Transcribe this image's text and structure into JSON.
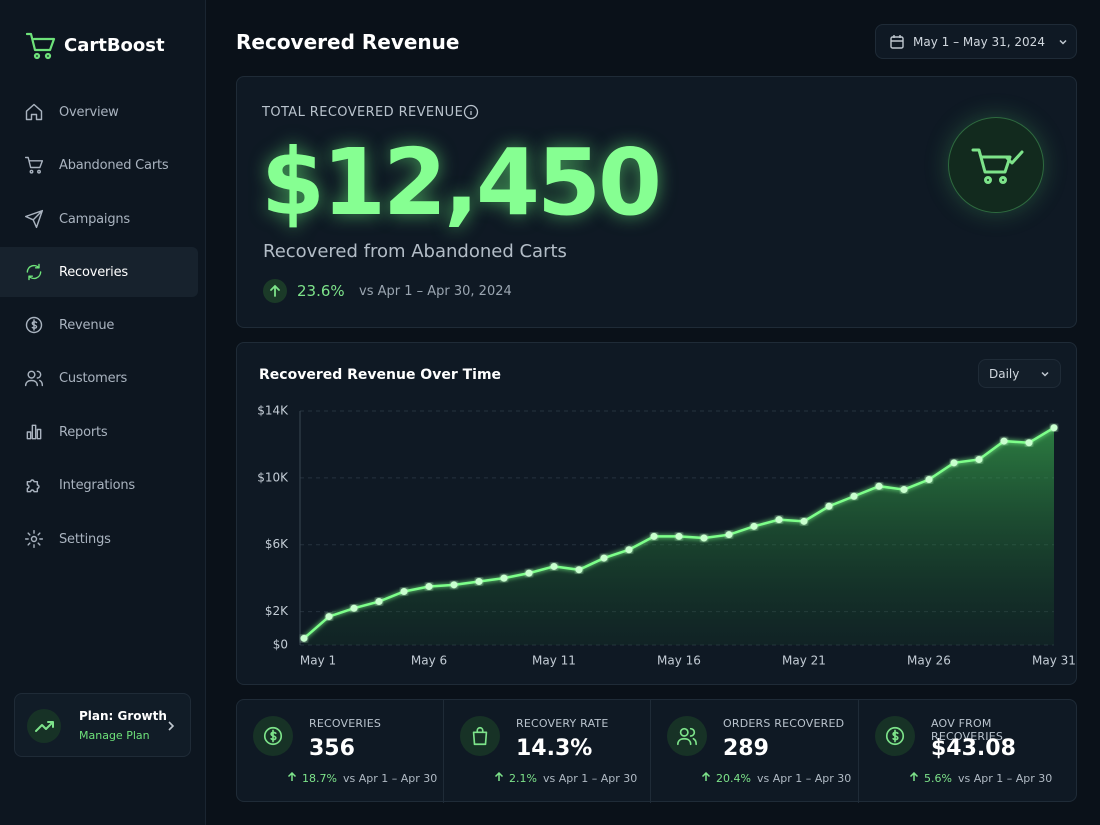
{
  "sidebar": {
    "brand": "CartBoost",
    "nav": [
      "Overview",
      "Abandoned Carts",
      "Campaigns",
      "Recoveries",
      "Revenue",
      "Customers",
      "Reports",
      "Integrations",
      "Settings"
    ],
    "plan": {
      "title": "Plan: Growth",
      "link": "Manage Plan"
    }
  },
  "header": {
    "title": "Recovered Revenue",
    "date_range": "May 1 – May 31, 2024"
  },
  "summary": {
    "label": "TOTAL RECOVERED REVENUE",
    "value": "$12,450",
    "subtitle": "Recovered from Abandoned Carts",
    "change": "23.6%",
    "compare": "vs Apr 1 – Apr 30, 2024"
  },
  "chart_data": {
    "type": "area",
    "title": "Recovered Revenue Over Time",
    "interval": "Daily",
    "color": "#7dff8a",
    "categories": [
      "May 1",
      null,
      null,
      null,
      null,
      "May 6",
      null,
      null,
      null,
      null,
      "May 11",
      null,
      null,
      null,
      null,
      "May 16",
      null,
      null,
      null,
      null,
      "May 21",
      null,
      null,
      null,
      null,
      "May 26",
      null,
      null,
      null,
      null,
      "May 31"
    ],
    "values": [
      400,
      1700,
      2200,
      2600,
      3200,
      3500,
      3600,
      3800,
      4000,
      4300,
      4700,
      4500,
      5200,
      5700,
      6500,
      6500,
      6400,
      6600,
      7100,
      7500,
      7400,
      8300,
      8900,
      9500,
      9300,
      9900,
      10900,
      11100,
      12200,
      12100,
      13000
    ],
    "ylim": [
      0,
      14000
    ],
    "yticks": [
      {
        "value": 0,
        "label": "$0"
      },
      {
        "value": 2000,
        "label": "$2K"
      },
      {
        "value": 6000,
        "label": "$6K"
      },
      {
        "value": 10000,
        "label": "$10K"
      },
      {
        "value": 14000,
        "label": "$14K"
      }
    ],
    "grid": true
  },
  "kpis": [
    {
      "label": "RECOVERIES",
      "value": "356",
      "change": "18.7%",
      "compare": "vs Apr 1 – Apr 30"
    },
    {
      "label": "RECOVERY RATE",
      "value": "14.3%",
      "change": "2.1%",
      "compare": "vs Apr 1 – Apr 30"
    },
    {
      "label": "ORDERS RECOVERED",
      "value": "289",
      "change": "20.4%",
      "compare": "vs Apr 1 – Apr 30"
    },
    {
      "label": "AOV FROM RECOVERIES",
      "value": "$43.08",
      "change": "5.6%",
      "compare": "vs Apr 1 – Apr 30"
    }
  ]
}
